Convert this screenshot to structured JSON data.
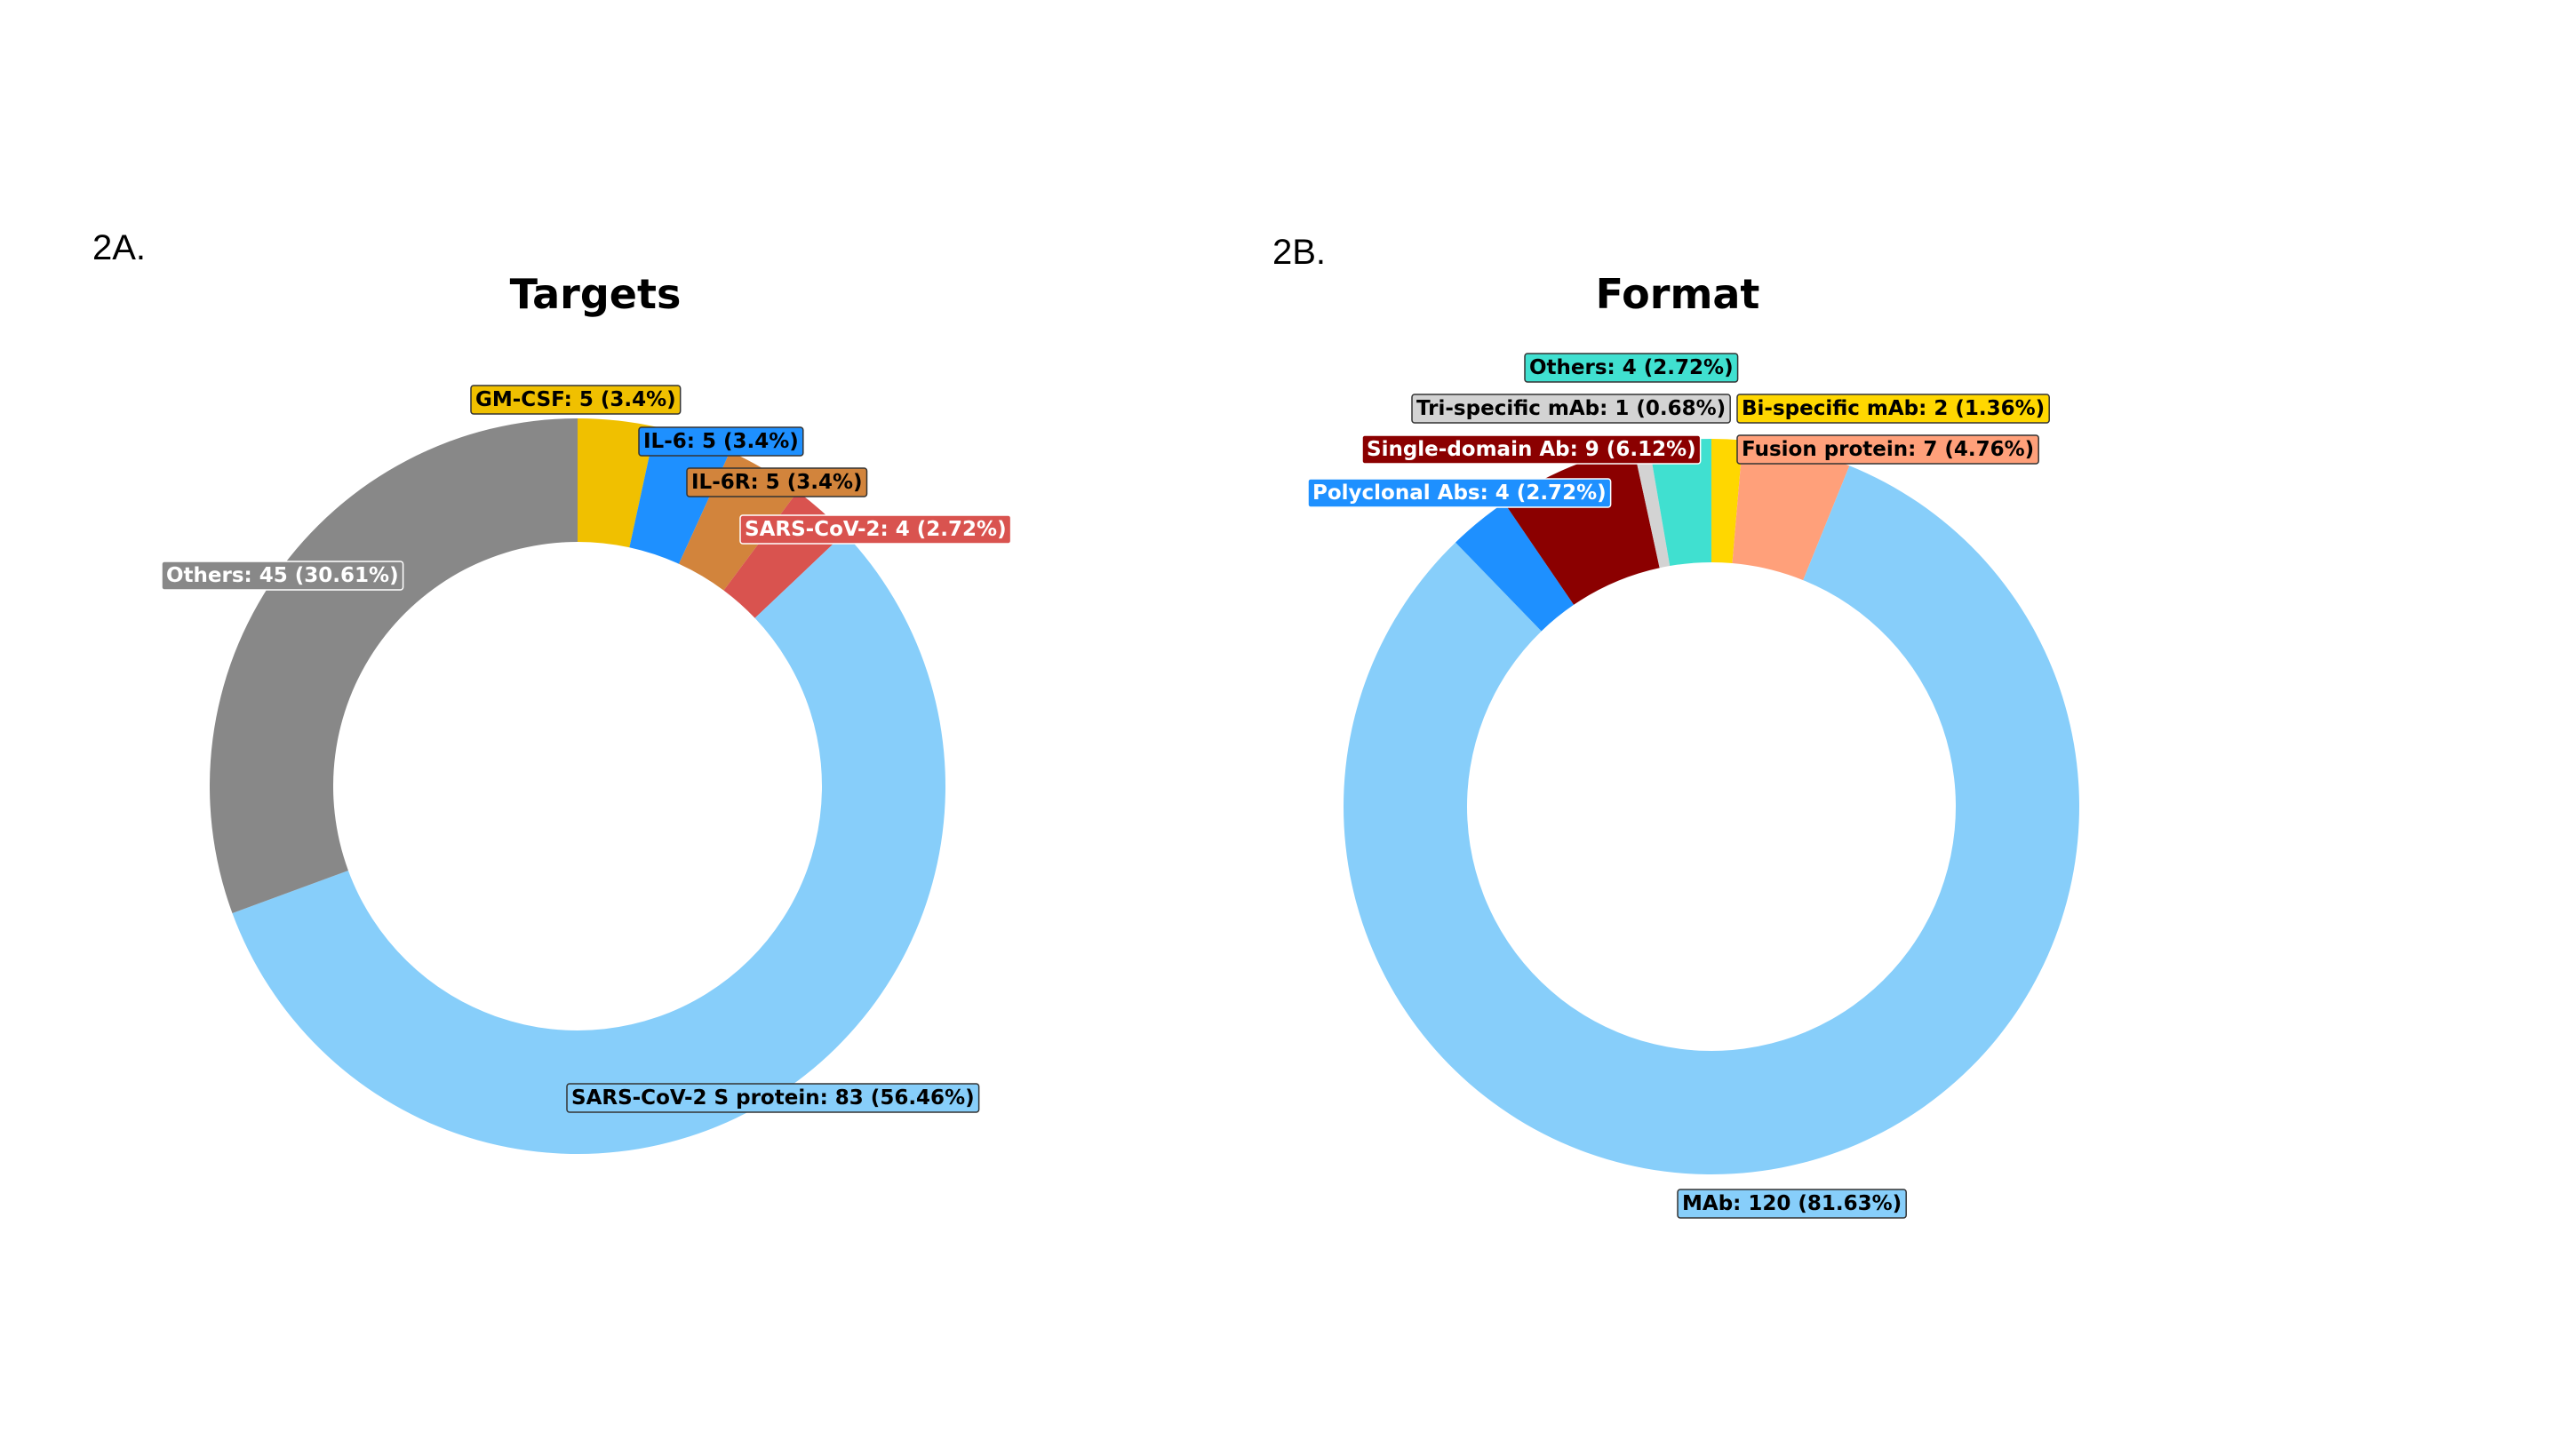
{
  "chart_data": [
    {
      "type": "pie",
      "style": "donut",
      "panel_label": "2A.",
      "title": "Targets",
      "slices": [
        {
          "label": "GM-CSF: 5 (3.4%)",
          "value": 5,
          "percent": 3.4,
          "color": "#F0C000",
          "text_color": "#000000"
        },
        {
          "label": "IL-6: 5 (3.4%)",
          "value": 5,
          "percent": 3.4,
          "color": "#1E90FF",
          "text_color": "#000000"
        },
        {
          "label": "IL-6R: 5 (3.4%)",
          "value": 5,
          "percent": 3.4,
          "color": "#D2843C",
          "text_color": "#000000"
        },
        {
          "label": "SARS-CoV-2: 4 (2.72%)",
          "value": 4,
          "percent": 2.72,
          "color": "#D9534F",
          "text_color": "#FFFFFF"
        },
        {
          "label": "SARS-CoV-2 S protein: 83 (56.46%)",
          "value": 83,
          "percent": 56.46,
          "color": "#87CEFA",
          "text_color": "#000000"
        },
        {
          "label": "Others: 45 (30.61%)",
          "value": 45,
          "percent": 30.61,
          "color": "#888888",
          "text_color": "#FFFFFF"
        }
      ]
    },
    {
      "type": "pie",
      "style": "donut",
      "panel_label": "2B.",
      "title": "Format",
      "slices": [
        {
          "label": "Bi-specific mAb: 2 (1.36%)",
          "value": 2,
          "percent": 1.36,
          "color": "#FFD700",
          "text_color": "#000000"
        },
        {
          "label": "Fusion protein: 7 (4.76%)",
          "value": 7,
          "percent": 4.76,
          "color": "#FFA07A",
          "text_color": "#000000"
        },
        {
          "label": "MAb: 120 (81.63%)",
          "value": 120,
          "percent": 81.63,
          "color": "#87CEFA",
          "text_color": "#000000"
        },
        {
          "label": "Polyclonal Abs: 4 (2.72%)",
          "value": 4,
          "percent": 2.72,
          "color": "#1E90FF",
          "text_color": "#FFFFFF"
        },
        {
          "label": "Single-domain Ab: 9 (6.12%)",
          "value": 9,
          "percent": 6.12,
          "color": "#8B0000",
          "text_color": "#FFFFFF"
        },
        {
          "label": "Tri-specific mAb: 1 (0.68%)",
          "value": 1,
          "percent": 0.68,
          "color": "#D3D3D3",
          "text_color": "#000000"
        },
        {
          "label": "Others: 4 (2.72%)",
          "value": 4,
          "percent": 2.72,
          "color": "#40E0D0",
          "text_color": "#000000"
        }
      ]
    }
  ]
}
